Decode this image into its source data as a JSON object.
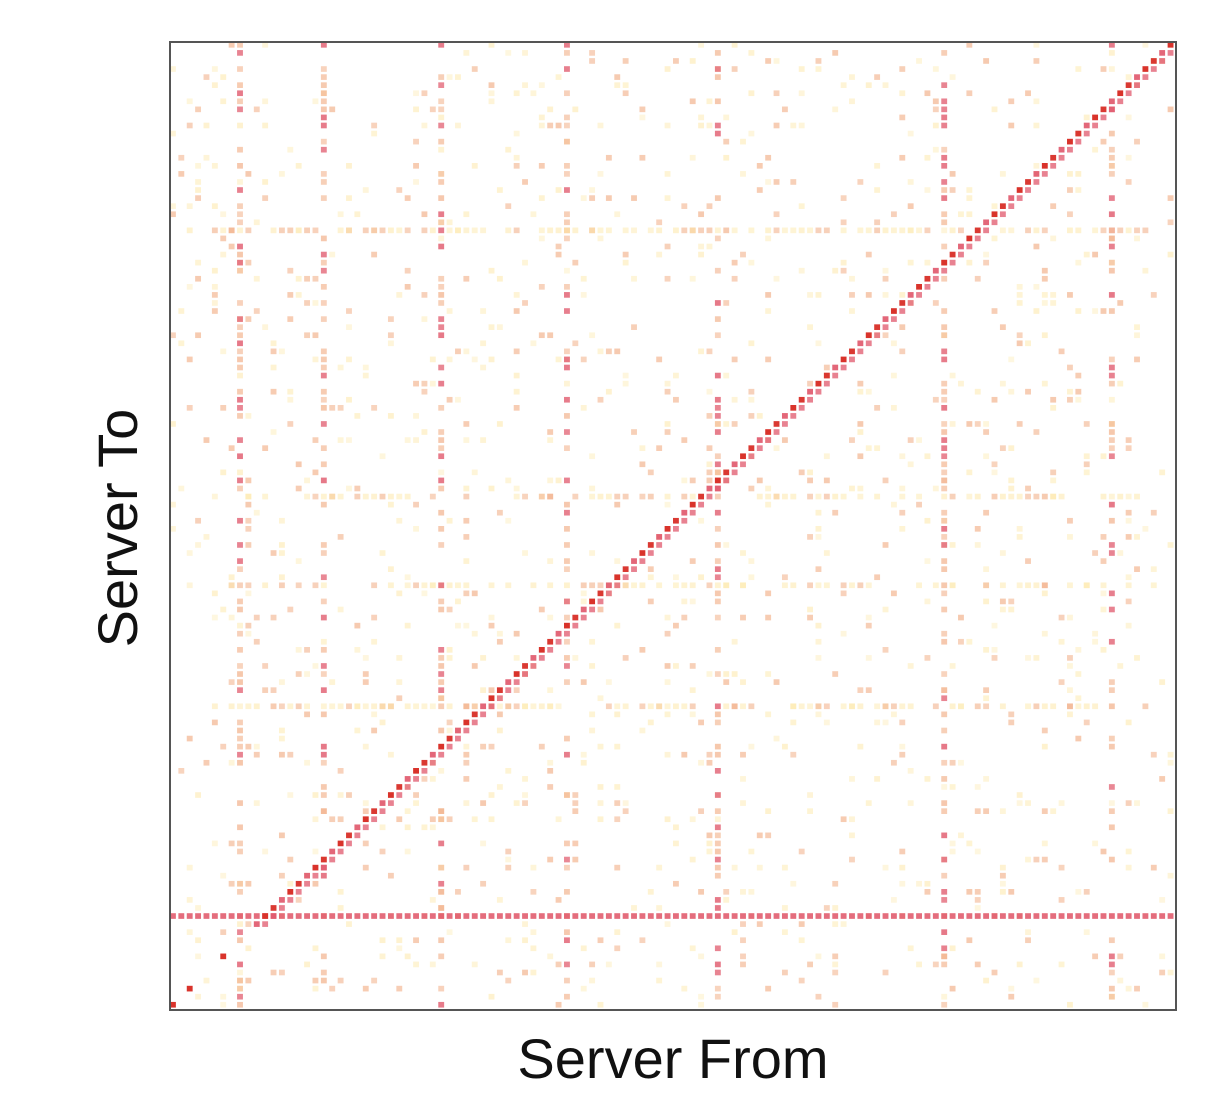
{
  "chart_data": {
    "type": "heatmap",
    "title": "",
    "xlabel": "Server From",
    "ylabel": "Server To",
    "xticks": [],
    "yticks": [],
    "grid": false,
    "legend": "none",
    "n_servers": 120,
    "background_color": "#ffffff",
    "frame_color": "#555555",
    "colors": {
      "low": "#fde7a6",
      "mid": "#f2b089",
      "high": "#e0576a",
      "peak": "#d9332b"
    },
    "diagonal": {
      "from_index": 11,
      "to_index": 120,
      "values": [
        1,
        0.95,
        0.85
      ]
    },
    "bright_clusters": [
      [
        1,
        1
      ],
      [
        3,
        3
      ],
      [
        7,
        7
      ]
    ],
    "dense_rows": [
      {
        "index": 12,
        "start": 0,
        "end": 120,
        "intensity": 0.8
      }
    ],
    "light_rows": [
      {
        "index": 38,
        "start": 6,
        "end": 118,
        "intensity": 0.3
      },
      {
        "index": 53,
        "start": 6,
        "end": 118,
        "intensity": 0.2
      },
      {
        "index": 64,
        "start": 10,
        "end": 118,
        "intensity": 0.25
      },
      {
        "index": 97,
        "start": 6,
        "end": 118,
        "intensity": 0.35
      }
    ],
    "dense_columns": [
      {
        "index": 9,
        "intensity": 0.5
      },
      {
        "index": 19,
        "intensity": 0.4
      },
      {
        "index": 33,
        "intensity": 0.45
      },
      {
        "index": 48,
        "intensity": 0.35
      },
      {
        "index": 66,
        "intensity": 0.4
      },
      {
        "index": 93,
        "intensity": 0.5
      },
      {
        "index": 113,
        "intensity": 0.35
      }
    ],
    "background_density": 0.09
  }
}
